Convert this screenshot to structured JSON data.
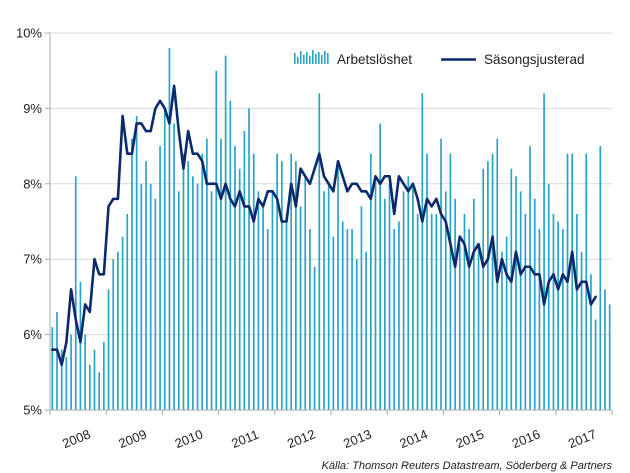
{
  "chart_data": {
    "type": "bar+line",
    "title": "",
    "source": "Källa: Thomson Reuters Datastream, Söderberg & Partners",
    "ylim": [
      5,
      10
    ],
    "ytick_values": [
      5,
      6,
      7,
      8,
      9,
      10
    ],
    "ytick_labels": [
      "5%",
      "6%",
      "7%",
      "8%",
      "9%",
      "10%"
    ],
    "xtick_labels": [
      "2008",
      "2009",
      "2010",
      "2011",
      "2012",
      "2013",
      "2014",
      "2015",
      "2016",
      "2017"
    ],
    "xlim_months": [
      0,
      120
    ],
    "legend": {
      "position": "top-right",
      "items": [
        {
          "label": "Arbetslöshet",
          "type": "bar"
        },
        {
          "label": "Säsongsjusterad",
          "type": "line"
        }
      ]
    },
    "colors": {
      "bars": "#2aa3c9",
      "line": "#0a2a6b",
      "axis": "#aaaaaa"
    },
    "series": [
      {
        "name": "Arbetslöshet",
        "type": "bar",
        "start_month": 0,
        "values": [
          6.1,
          6.3,
          5.8,
          5.7,
          6.0,
          8.1,
          6.7,
          6.0,
          5.6,
          5.8,
          5.5,
          5.9,
          6.6,
          7.0,
          7.1,
          7.3,
          7.6,
          8.6,
          8.9,
          8.0,
          8.3,
          8.0,
          7.8,
          8.5,
          9.0,
          9.8,
          8.8,
          7.9,
          8.4,
          8.3,
          8.1,
          8.0,
          8.4,
          8.6,
          7.9,
          9.5,
          8.6,
          9.7,
          9.1,
          8.5,
          8.2,
          8.7,
          9.0,
          8.4,
          7.9,
          7.7,
          7.4,
          7.9,
          8.4,
          8.3,
          7.6,
          8.4,
          8.3,
          7.7,
          8.1,
          7.4,
          6.9,
          9.2,
          7.9,
          8.0,
          7.3,
          8.3,
          7.5,
          7.4,
          7.4,
          7.0,
          7.7,
          7.1,
          8.4,
          8.1,
          8.8,
          7.8,
          8.0,
          7.4,
          7.5,
          7.9,
          8.1,
          8.0,
          7.6,
          9.2,
          8.4,
          7.6,
          7.6,
          8.6,
          7.9,
          8.4,
          7.8,
          7.2,
          7.6,
          7.4,
          7.8,
          7.2,
          8.2,
          8.3,
          8.4,
          8.6,
          7.1,
          7.3,
          8.2,
          8.1,
          7.9,
          7.6,
          8.5,
          7.8,
          7.4,
          9.2,
          8.0,
          7.6,
          7.5,
          7.4,
          8.4,
          8.4,
          7.6,
          7.1,
          8.4,
          6.8,
          6.2,
          8.5,
          6.6,
          6.4
        ]
      },
      {
        "name": "Säsongsjusterad",
        "type": "line",
        "start_month": 0,
        "values": [
          5.8,
          5.8,
          5.6,
          5.9,
          6.6,
          6.2,
          5.9,
          6.4,
          6.3,
          7.0,
          6.8,
          6.8,
          7.7,
          7.8,
          7.8,
          8.9,
          8.4,
          8.4,
          8.8,
          8.8,
          8.7,
          8.7,
          9.0,
          9.1,
          9.0,
          8.8,
          9.3,
          8.7,
          8.2,
          8.7,
          8.4,
          8.4,
          8.3,
          8.0,
          8.0,
          8.0,
          7.8,
          8.0,
          7.8,
          7.7,
          7.9,
          7.7,
          7.7,
          7.5,
          7.8,
          7.7,
          7.9,
          7.9,
          7.8,
          7.5,
          7.5,
          8.0,
          7.7,
          8.2,
          8.1,
          8.0,
          8.2,
          8.4,
          8.1,
          8.0,
          7.9,
          8.3,
          8.1,
          7.9,
          8.0,
          8.0,
          7.9,
          7.9,
          7.8,
          8.1,
          8.0,
          8.1,
          8.1,
          7.6,
          8.1,
          8.0,
          7.9,
          8.0,
          7.8,
          7.5,
          7.8,
          7.7,
          7.8,
          7.6,
          7.5,
          7.2,
          6.9,
          7.3,
          7.2,
          6.9,
          7.1,
          7.2,
          6.9,
          7.0,
          7.3,
          6.7,
          7.0,
          6.8,
          6.7,
          7.1,
          6.8,
          6.9,
          6.9,
          6.8,
          6.8,
          6.4,
          6.7,
          6.8,
          6.6,
          6.8,
          6.7,
          7.1,
          6.6,
          6.7,
          6.7,
          6.4,
          6.5
        ]
      }
    ]
  }
}
